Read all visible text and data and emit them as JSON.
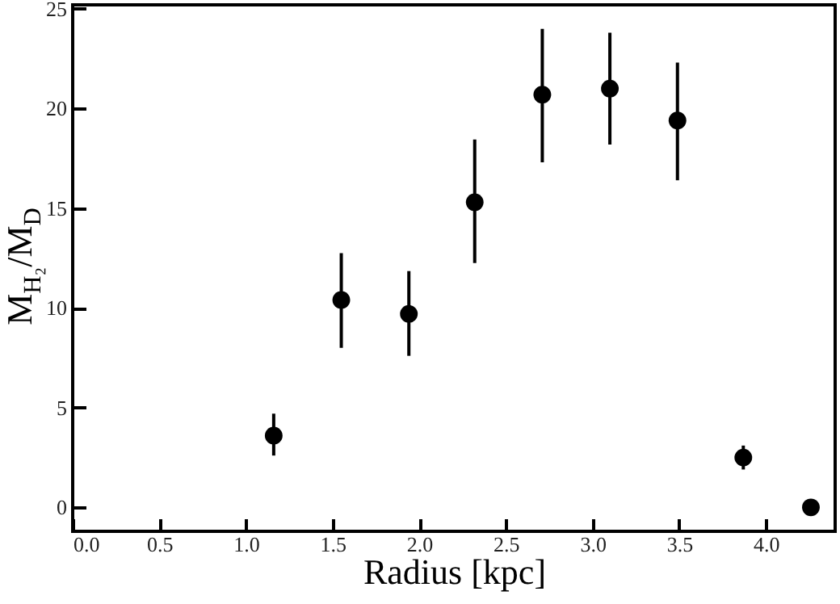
{
  "chart_data": {
    "type": "scatter",
    "xlabel": "Radius [kpc]",
    "ylabel": "M$_{H₂}$/M$_{D}$",
    "x": [
      1.16,
      1.55,
      1.94,
      2.32,
      2.71,
      3.1,
      3.49,
      3.87,
      4.26
    ],
    "values": [
      3.6,
      10.4,
      9.7,
      15.3,
      20.7,
      21.0,
      19.4,
      2.5,
      0
    ],
    "errors": [
      [
        2.6,
        4.7
      ],
      [
        8.0,
        12.75
      ],
      [
        7.6,
        11.85
      ],
      [
        12.25,
        18.45
      ],
      [
        17.3,
        24.0
      ],
      [
        18.2,
        23.8
      ],
      [
        16.4,
        22.3
      ],
      [
        1.9,
        3.1
      ],
      null
    ],
    "color": "#000000",
    "marker": "circle",
    "grid": false,
    "xlim": [
      0,
      4.4
    ],
    "xticks": [
      {
        "value": 0,
        "label": "0.0"
      },
      0.5,
      {
        "value": 1,
        "label": "1.0"
      },
      1.5,
      {
        "value": 2,
        "label": "2.0"
      },
      2.5,
      {
        "value": 3,
        "label": "3.0"
      },
      3.5,
      {
        "value": 4,
        "label": "4.0"
      }
    ],
    "ylim": [
      -1.2,
      25.2
    ],
    "yticks": [
      0,
      5,
      10,
      15,
      20,
      25
    ]
  }
}
